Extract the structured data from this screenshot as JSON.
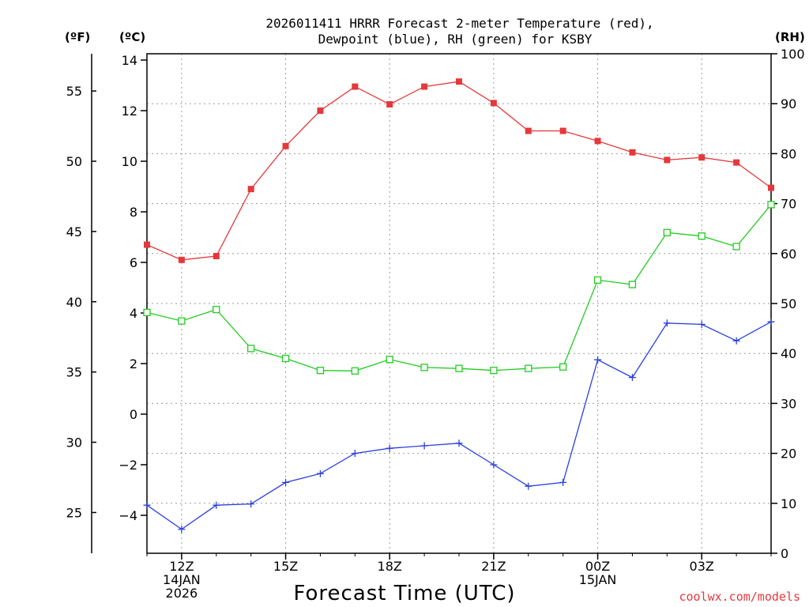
{
  "chart_data": {
    "type": "line",
    "title": "2026011411 HRRR Forecast 2-meter Temperature (red),",
    "title_line2": "Dewpoint (blue), RH (green) for KSBY",
    "xlabel": "Forecast Time (UTC)",
    "credit": "coolwx.com/models",
    "units": {
      "fahrenheit": "(ºF)",
      "celsius": "(ºC)",
      "rh": "(RH)"
    },
    "x": [
      11,
      12,
      13,
      14,
      15,
      16,
      17,
      18,
      19,
      20,
      21,
      22,
      23,
      24,
      25,
      26,
      27,
      28,
      29
    ],
    "xlim": [
      11,
      29
    ],
    "x_ticks": [
      {
        "x": 12,
        "lines": [
          "12Z",
          "14JAN",
          "2026"
        ]
      },
      {
        "x": 15,
        "lines": [
          "15Z"
        ]
      },
      {
        "x": 18,
        "lines": [
          "18Z"
        ]
      },
      {
        "x": 21,
        "lines": [
          "21Z"
        ]
      },
      {
        "x": 24,
        "lines": [
          "00Z",
          "15JAN"
        ]
      },
      {
        "x": 27,
        "lines": [
          "03Z"
        ]
      }
    ],
    "celsius_axis": {
      "ylim": [
        -5.5,
        14.25
      ],
      "ticks": [
        "14",
        "12",
        "10",
        "8",
        "6",
        "4",
        "2",
        "0",
        "−2",
        "−4"
      ]
    },
    "fahrenheit_axis": {
      "ticks": [
        "55",
        "50",
        "45",
        "40",
        "35",
        "30",
        "25"
      ]
    },
    "rh_axis": {
      "ylim": [
        0,
        100
      ],
      "ticks": [
        "100",
        "90",
        "80",
        "70",
        "60",
        "50",
        "40",
        "30",
        "20",
        "10",
        "0"
      ]
    },
    "series": [
      {
        "name": "2-meter Temperature",
        "color": "#e5383b",
        "axis": "celsius",
        "marker": "filled-square",
        "values": [
          6.7,
          6.1,
          6.25,
          8.9,
          10.6,
          12.0,
          12.95,
          12.25,
          12.95,
          13.15,
          12.3,
          11.2,
          11.2,
          10.8,
          10.35,
          10.05,
          10.15,
          9.95,
          8.95
        ]
      },
      {
        "name": "Dewpoint",
        "color": "#2a3fe0",
        "axis": "celsius",
        "marker": "plus",
        "values": [
          -3.6,
          -4.55,
          -3.6,
          -3.55,
          -2.7,
          -2.35,
          -1.55,
          -1.35,
          -1.25,
          -1.15,
          -2.0,
          -2.85,
          -2.7,
          2.15,
          1.45,
          3.6,
          3.55,
          2.9,
          3.65
        ]
      },
      {
        "name": "RH",
        "color": "#22cc22",
        "axis": "rh",
        "marker": "open-square",
        "values": [
          48.2,
          46.5,
          48.8,
          41.0,
          39.0,
          36.6,
          36.5,
          38.8,
          37.2,
          37.0,
          36.6,
          37.0,
          37.3,
          54.7,
          53.8,
          64.2,
          63.5,
          61.4,
          69.8
        ]
      }
    ]
  }
}
